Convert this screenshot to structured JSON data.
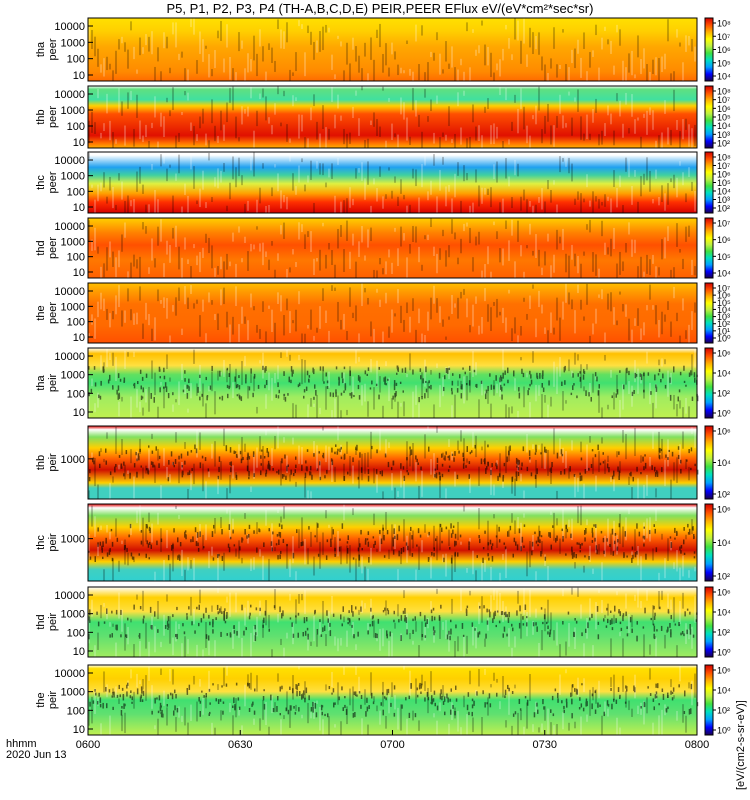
{
  "title": "P5, P1, P2, P3, P4 (TH-A,B,C,D,E) PEIR,PEER EFlux eV/(eV*cm²*sec*sr)",
  "colorbar_label": "[eV/(cm2-s-sr-eV)]",
  "time_axis": {
    "ticks": [
      "0600",
      "0630",
      "0700",
      "0730",
      "0800"
    ],
    "label_line1": "hhmm",
    "label_line2": "2020 Jun 13"
  },
  "chart_data": {
    "type": "heatmap",
    "x_range": [
      "06:00",
      "08:00"
    ],
    "date": "2020 Jun 13",
    "colormap": [
      "#1a0050",
      "#0000ff",
      "#00a0ff",
      "#00e0c0",
      "#40e040",
      "#c0f040",
      "#ffff00",
      "#ffb000",
      "#ff5000",
      "#d40000"
    ],
    "panels": [
      {
        "label1": "tha",
        "label2": "peer",
        "yticks": [
          "10",
          "100",
          "1000",
          "10000"
        ],
        "cbar_ticks": [
          "10⁴",
          "10⁵",
          "10⁶",
          "10⁷",
          "10⁸"
        ],
        "bands": [
          [
            0,
            "#ff6a00"
          ],
          [
            0.15,
            "#ff8a00"
          ],
          [
            0.55,
            "#ffa800"
          ],
          [
            0.8,
            "#ffd000"
          ],
          [
            1.0,
            "#ffe000"
          ]
        ]
      },
      {
        "label1": "thb",
        "label2": "peer",
        "yticks": [
          "10",
          "100",
          "1000",
          "10000"
        ],
        "cbar_ticks": [
          "10²",
          "10³",
          "10⁴",
          "10⁵",
          "10⁶",
          "10⁷",
          "10⁸"
        ],
        "bands": [
          [
            0,
            "#ffb000"
          ],
          [
            0.08,
            "#ff7000"
          ],
          [
            0.2,
            "#e01000"
          ],
          [
            0.55,
            "#ff5000"
          ],
          [
            0.68,
            "#ffd000"
          ],
          [
            0.78,
            "#40e0a0"
          ],
          [
            0.95,
            "#60e080"
          ],
          [
            1.0,
            "#ffffff"
          ]
        ]
      },
      {
        "label1": "thc",
        "label2": "peer",
        "yticks": [
          "10",
          "100",
          "1000",
          "10000"
        ],
        "cbar_ticks": [
          "10²",
          "10³",
          "10⁴",
          "10⁵",
          "10⁶",
          "10⁷",
          "10⁸"
        ],
        "bands": [
          [
            0,
            "#d40000"
          ],
          [
            0.18,
            "#ff3000"
          ],
          [
            0.32,
            "#ffa000"
          ],
          [
            0.48,
            "#e0f040"
          ],
          [
            0.62,
            "#40d0a0"
          ],
          [
            0.75,
            "#20a0f0"
          ],
          [
            0.95,
            "#ffffff"
          ],
          [
            1.0,
            "#ffffff"
          ]
        ]
      },
      {
        "label1": "thd",
        "label2": "peer",
        "yticks": [
          "10",
          "100",
          "1000",
          "10000"
        ],
        "cbar_ticks": [
          "10⁴",
          "10⁵",
          "10⁶",
          "10⁷"
        ],
        "bands": [
          [
            0,
            "#ff6000"
          ],
          [
            0.3,
            "#ff7800"
          ],
          [
            0.55,
            "#ff5000"
          ],
          [
            0.75,
            "#ff8000"
          ],
          [
            0.9,
            "#ffb000"
          ],
          [
            1.0,
            "#ffd000"
          ]
        ]
      },
      {
        "label1": "the",
        "label2": "peer",
        "yticks": [
          "10",
          "100",
          "1000",
          "10000"
        ],
        "cbar_ticks": [
          "10⁰",
          "10¹",
          "10²",
          "10³",
          "10⁴",
          "10⁵",
          "10⁶",
          "10⁷"
        ],
        "bands": [
          [
            0,
            "#ff5000"
          ],
          [
            0.3,
            "#ff6a00"
          ],
          [
            0.65,
            "#ff7000"
          ],
          [
            0.85,
            "#ff9a00"
          ],
          [
            1.0,
            "#ffc000"
          ]
        ]
      },
      {
        "label1": "tha",
        "label2": "peir",
        "yticks": [
          "10",
          "100",
          "1000",
          "10000"
        ],
        "cbar_ticks": [
          "10⁰",
          "10²",
          "10⁴",
          "10⁶"
        ],
        "bands": [
          [
            0,
            "#c0f050"
          ],
          [
            0.3,
            "#a0ec60"
          ],
          [
            0.5,
            "#40e070"
          ],
          [
            0.62,
            "#60e060"
          ],
          [
            0.75,
            "#ffe040"
          ],
          [
            0.92,
            "#ffc000"
          ],
          [
            1.0,
            "#ffffff"
          ]
        ]
      },
      {
        "label1": "thb",
        "label2": "peir",
        "yticks": [
          "1000"
        ],
        "cbar_ticks": [
          "10²",
          "10⁴",
          "10⁶"
        ],
        "bands": [
          [
            0,
            "#40d0c0"
          ],
          [
            0.15,
            "#40d0c0"
          ],
          [
            0.22,
            "#ffd000"
          ],
          [
            0.4,
            "#d01000"
          ],
          [
            0.55,
            "#ff6000"
          ],
          [
            0.7,
            "#ffd000"
          ],
          [
            0.85,
            "#80e060"
          ],
          [
            0.95,
            "#ffffff"
          ],
          [
            1.0,
            "#e00000"
          ]
        ]
      },
      {
        "label1": "thc",
        "label2": "peir",
        "yticks": [
          "1000"
        ],
        "cbar_ticks": [
          "10²",
          "10⁴",
          "10⁶"
        ],
        "bands": [
          [
            0,
            "#30d0d0"
          ],
          [
            0.15,
            "#40d0c0"
          ],
          [
            0.25,
            "#ffd000"
          ],
          [
            0.4,
            "#d01000"
          ],
          [
            0.55,
            "#ff6000"
          ],
          [
            0.7,
            "#ffd000"
          ],
          [
            0.85,
            "#80e060"
          ],
          [
            0.95,
            "#ffffff"
          ],
          [
            1.0,
            "#e00000"
          ]
        ]
      },
      {
        "label1": "thd",
        "label2": "peir",
        "yticks": [
          "10",
          "100",
          "1000",
          "10000"
        ],
        "cbar_ticks": [
          "10⁰",
          "10²",
          "10⁴",
          "10⁶"
        ],
        "bands": [
          [
            0,
            "#a0ec60"
          ],
          [
            0.3,
            "#60e070"
          ],
          [
            0.5,
            "#40e070"
          ],
          [
            0.65,
            "#ffe040"
          ],
          [
            0.85,
            "#ffd000"
          ],
          [
            1.0,
            "#ffffff"
          ]
        ]
      },
      {
        "label1": "the",
        "label2": "peir",
        "yticks": [
          "10",
          "100",
          "1000",
          "10000"
        ],
        "cbar_ticks": [
          "10⁰",
          "10²",
          "10⁴",
          "10⁶"
        ],
        "bands": [
          [
            0,
            "#c0f050"
          ],
          [
            0.3,
            "#60e070"
          ],
          [
            0.5,
            "#40e070"
          ],
          [
            0.62,
            "#ffe040"
          ],
          [
            0.8,
            "#ffd000"
          ],
          [
            0.95,
            "#ffe000"
          ],
          [
            1.0,
            "#ffffff"
          ]
        ]
      }
    ]
  }
}
